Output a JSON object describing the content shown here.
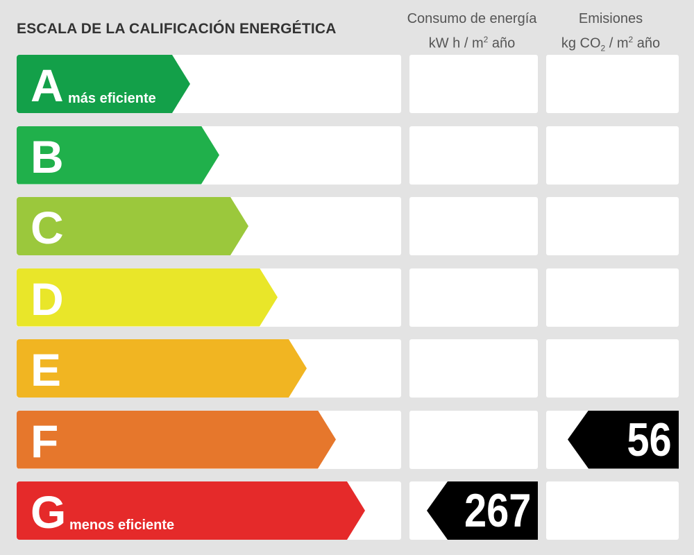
{
  "title": "ESCALA DE LA CALIFICACIÓN ENERGÉTICA",
  "columns": {
    "energy": {
      "line1": "Consumo de energía",
      "line2a": "kW h  / m",
      "line2sup": "2",
      "line2b": " año"
    },
    "emissions": {
      "line1": "Emisiones",
      "line2a": "kg CO",
      "line2sub": "2",
      "line2b": "  / m",
      "line2sup": "2",
      "line2c": " año"
    }
  },
  "classes": [
    {
      "letter": "A",
      "subtitle": "más eficiente",
      "color": "#13a049"
    },
    {
      "letter": "B",
      "subtitle": "",
      "color": "#20b04b"
    },
    {
      "letter": "C",
      "subtitle": "",
      "color": "#9bc83c"
    },
    {
      "letter": "D",
      "subtitle": "",
      "color": "#e9e629"
    },
    {
      "letter": "E",
      "subtitle": "",
      "color": "#f1b522"
    },
    {
      "letter": "F",
      "subtitle": "",
      "color": "#e6772c"
    },
    {
      "letter": "G",
      "subtitle": "menos eficiente",
      "color": "#e52a2a"
    }
  ],
  "ratings": {
    "energy": {
      "class": "G",
      "value": "267"
    },
    "emissions": {
      "class": "F",
      "value": "56"
    }
  }
}
